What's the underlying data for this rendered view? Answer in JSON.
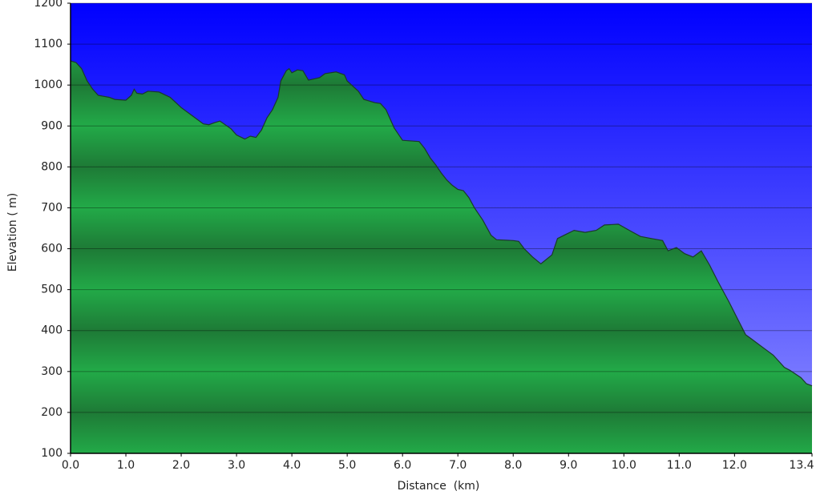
{
  "chart_data": {
    "type": "area",
    "x_label": "Distance  (km)",
    "y_label": "Elevation ( m)",
    "color": "#22aa44",
    "line_color": "#1a3a2a",
    "background_top": "#0000ff",
    "background_bottom": "#9090ff",
    "grid": true,
    "xlim": [
      0,
      13.4
    ],
    "ylim": [
      100,
      1200
    ],
    "xticks": [
      {
        "value": 0,
        "label": "0.0"
      },
      {
        "value": 1,
        "label": "1.0"
      },
      {
        "value": 2,
        "label": "2.0"
      },
      {
        "value": 3,
        "label": "3.0"
      },
      {
        "value": 4,
        "label": "4.0"
      },
      {
        "value": 5,
        "label": "5.0"
      },
      {
        "value": 6,
        "label": "6.0"
      },
      {
        "value": 7,
        "label": "7.0"
      },
      {
        "value": 8,
        "label": "8.0"
      },
      {
        "value": 9,
        "label": "9.0"
      },
      {
        "value": 10,
        "label": "10.0"
      },
      {
        "value": 11,
        "label": "11.0"
      },
      {
        "value": 12,
        "label": "12.0"
      },
      13.4
    ],
    "yticks": [
      100,
      200,
      300,
      400,
      500,
      600,
      700,
      800,
      900,
      1000,
      1100,
      1200
    ],
    "x": [
      0,
      0.1,
      0.2,
      0.3,
      0.4,
      0.5,
      0.7,
      0.8,
      1.0,
      1.1,
      1.15,
      1.2,
      1.3,
      1.4,
      1.6,
      1.8,
      2.0,
      2.2,
      2.4,
      2.5,
      2.6,
      2.7,
      2.9,
      3.0,
      3.15,
      3.25,
      3.35,
      3.45,
      3.55,
      3.65,
      3.75,
      3.8,
      3.9,
      3.95,
      4.0,
      4.1,
      4.2,
      4.3,
      4.5,
      4.6,
      4.8,
      4.95,
      5.0,
      5.2,
      5.3,
      5.5,
      5.6,
      5.7,
      5.85,
      6.0,
      6.2,
      6.3,
      6.4,
      6.5,
      6.6,
      6.7,
      6.8,
      6.9,
      7.0,
      7.1,
      7.2,
      7.3,
      7.45,
      7.6,
      7.7,
      8.0,
      8.1,
      8.2,
      8.35,
      8.5,
      8.7,
      8.8,
      8.95,
      9.1,
      9.3,
      9.5,
      9.65,
      9.9,
      10.1,
      10.3,
      10.5,
      10.7,
      10.8,
      10.95,
      11.1,
      11.25,
      11.4,
      11.55,
      11.7,
      11.9,
      12.05,
      12.2,
      12.3,
      12.5,
      12.7,
      12.9,
      13.0,
      13.2,
      13.3,
      13.4
    ],
    "values": [
      1059,
      1055,
      1040,
      1010,
      990,
      975,
      970,
      965,
      963,
      975,
      990,
      980,
      978,
      985,
      983,
      970,
      945,
      925,
      905,
      903,
      908,
      912,
      893,
      878,
      868,
      875,
      872,
      890,
      920,
      940,
      970,
      1010,
      1035,
      1040,
      1030,
      1037,
      1035,
      1012,
      1018,
      1028,
      1032,
      1025,
      1010,
      985,
      965,
      957,
      955,
      940,
      895,
      865,
      863,
      862,
      845,
      822,
      805,
      785,
      768,
      755,
      745,
      742,
      725,
      700,
      670,
      633,
      622,
      620,
      618,
      600,
      580,
      563,
      585,
      625,
      635,
      645,
      640,
      645,
      658,
      660,
      645,
      630,
      625,
      620,
      595,
      603,
      588,
      580,
      595,
      560,
      520,
      470,
      430,
      390,
      380,
      360,
      340,
      310,
      303,
      285,
      270,
      265
    ]
  }
}
